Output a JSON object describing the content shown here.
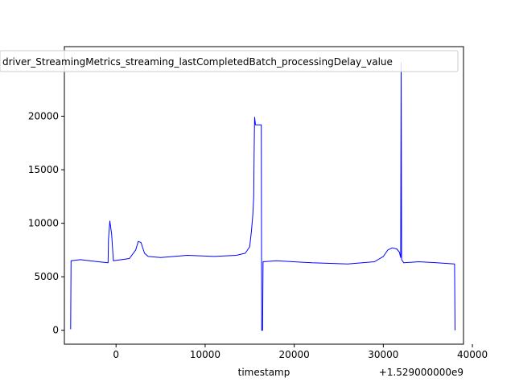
{
  "chart_data": {
    "type": "line",
    "xlabel": "timestamp",
    "ylabel": "",
    "x_offset_label": "+1.529000000e9",
    "xlim": [
      -5800,
      39000
    ],
    "ylim": [
      -1300,
      26500
    ],
    "x_ticks": [
      0,
      10000,
      20000,
      30000,
      40000
    ],
    "x_tick_labels": [
      "0",
      "10000",
      "20000",
      "30000",
      "40000"
    ],
    "y_ticks": [
      0,
      5000,
      10000,
      15000,
      20000
    ],
    "y_tick_labels": [
      "0",
      "5000",
      "10000",
      "15000",
      "20000"
    ],
    "legend_position": "top",
    "grid": false,
    "series": [
      {
        "name": "driver_StreamingMetrics_streaming_lastCompletedBatch_processingDelay_value",
        "color": "#0000ff",
        "x": [
          -5100,
          -5050,
          -4000,
          -2000,
          -900,
          -850,
          -700,
          -500,
          -300,
          1500,
          2200,
          2500,
          2800,
          3200,
          3600,
          5000,
          8000,
          11000,
          13500,
          14500,
          15000,
          15200,
          15350,
          15450,
          15500,
          15550,
          15650,
          15700,
          16300,
          16350,
          16450,
          16500,
          18000,
          22000,
          26000,
          29000,
          30000,
          30500,
          31000,
          31500,
          31800,
          31950,
          32000,
          32050,
          32300,
          34000,
          36000,
          38000,
          38050
        ],
        "y": [
          100,
          6500,
          6600,
          6400,
          6300,
          8500,
          10200,
          9000,
          6500,
          6700,
          7500,
          8300,
          8200,
          7200,
          6900,
          6800,
          7000,
          6900,
          7000,
          7200,
          7800,
          9300,
          10800,
          12500,
          16500,
          19900,
          19200,
          19200,
          19200,
          0,
          0,
          6400,
          6500,
          6300,
          6200,
          6400,
          6900,
          7500,
          7700,
          7600,
          7300,
          6800,
          25000,
          6600,
          6300,
          6400,
          6300,
          6200,
          0
        ]
      }
    ]
  }
}
